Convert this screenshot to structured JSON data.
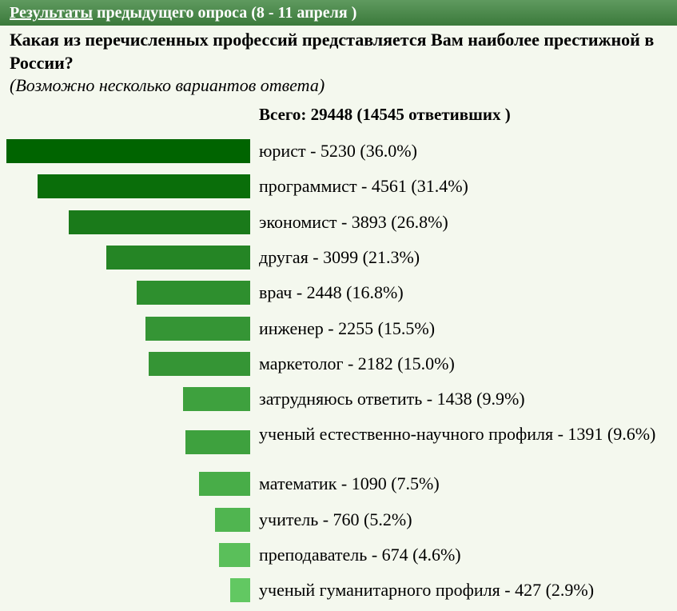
{
  "header": {
    "link": "Результаты",
    "rest": " предыдущего опроса (8 - 11 апреля )"
  },
  "question": "Какая из перечисленных профессий представляется Вам наиболее престижной в России?",
  "note": "(Возможно несколько вариантов ответа)",
  "total_label": "Всего: 29448 (14545 ответивших )",
  "chart_data": {
    "type": "bar",
    "orientation": "horizontal",
    "total_votes": 29448,
    "respondents": 14545,
    "categories": [
      "юрист",
      "программист",
      "экономист",
      "другая",
      "врач",
      "инженер",
      "маркетолог",
      "затрудняюсь ответить",
      "ученый естественно-научного профиля",
      "математик",
      "учитель",
      "преподаватель",
      "ученый гуманитарного профиля"
    ],
    "counts": [
      5230,
      4561,
      3893,
      3099,
      2448,
      2255,
      2182,
      1438,
      1391,
      1090,
      760,
      674,
      427
    ],
    "percents": [
      36.0,
      31.4,
      26.8,
      21.3,
      16.8,
      15.5,
      15.0,
      9.9,
      9.6,
      7.5,
      5.2,
      4.6,
      2.9
    ],
    "labels": [
      "юрист - 5230 (36.0%)",
      "программист - 4561 (31.4%)",
      "экономист - 3893 (26.8%)",
      "другая - 3099 (21.3%)",
      "врач - 2448 (16.8%)",
      "инженер - 2255 (15.5%)",
      "маркетолог - 2182 (15.0%)",
      "затрудняюсь ответить - 1438 (9.9%)",
      "ученый естественно-научного профиля - 1391 (9.6%)",
      "математик - 1090 (7.5%)",
      "учитель - 760 (5.2%)",
      "преподаватель - 674 (4.6%)",
      "ученый гуманитарного профиля - 427 (2.9%)"
    ],
    "colors": [
      "#006400",
      "#0a6e0a",
      "#1a7a1a",
      "#258525",
      "#2e8f2e",
      "#359535",
      "#359535",
      "#3ea13e",
      "#3ea13e",
      "#48ad48",
      "#50b550",
      "#5abf5a",
      "#62c862"
    ]
  }
}
